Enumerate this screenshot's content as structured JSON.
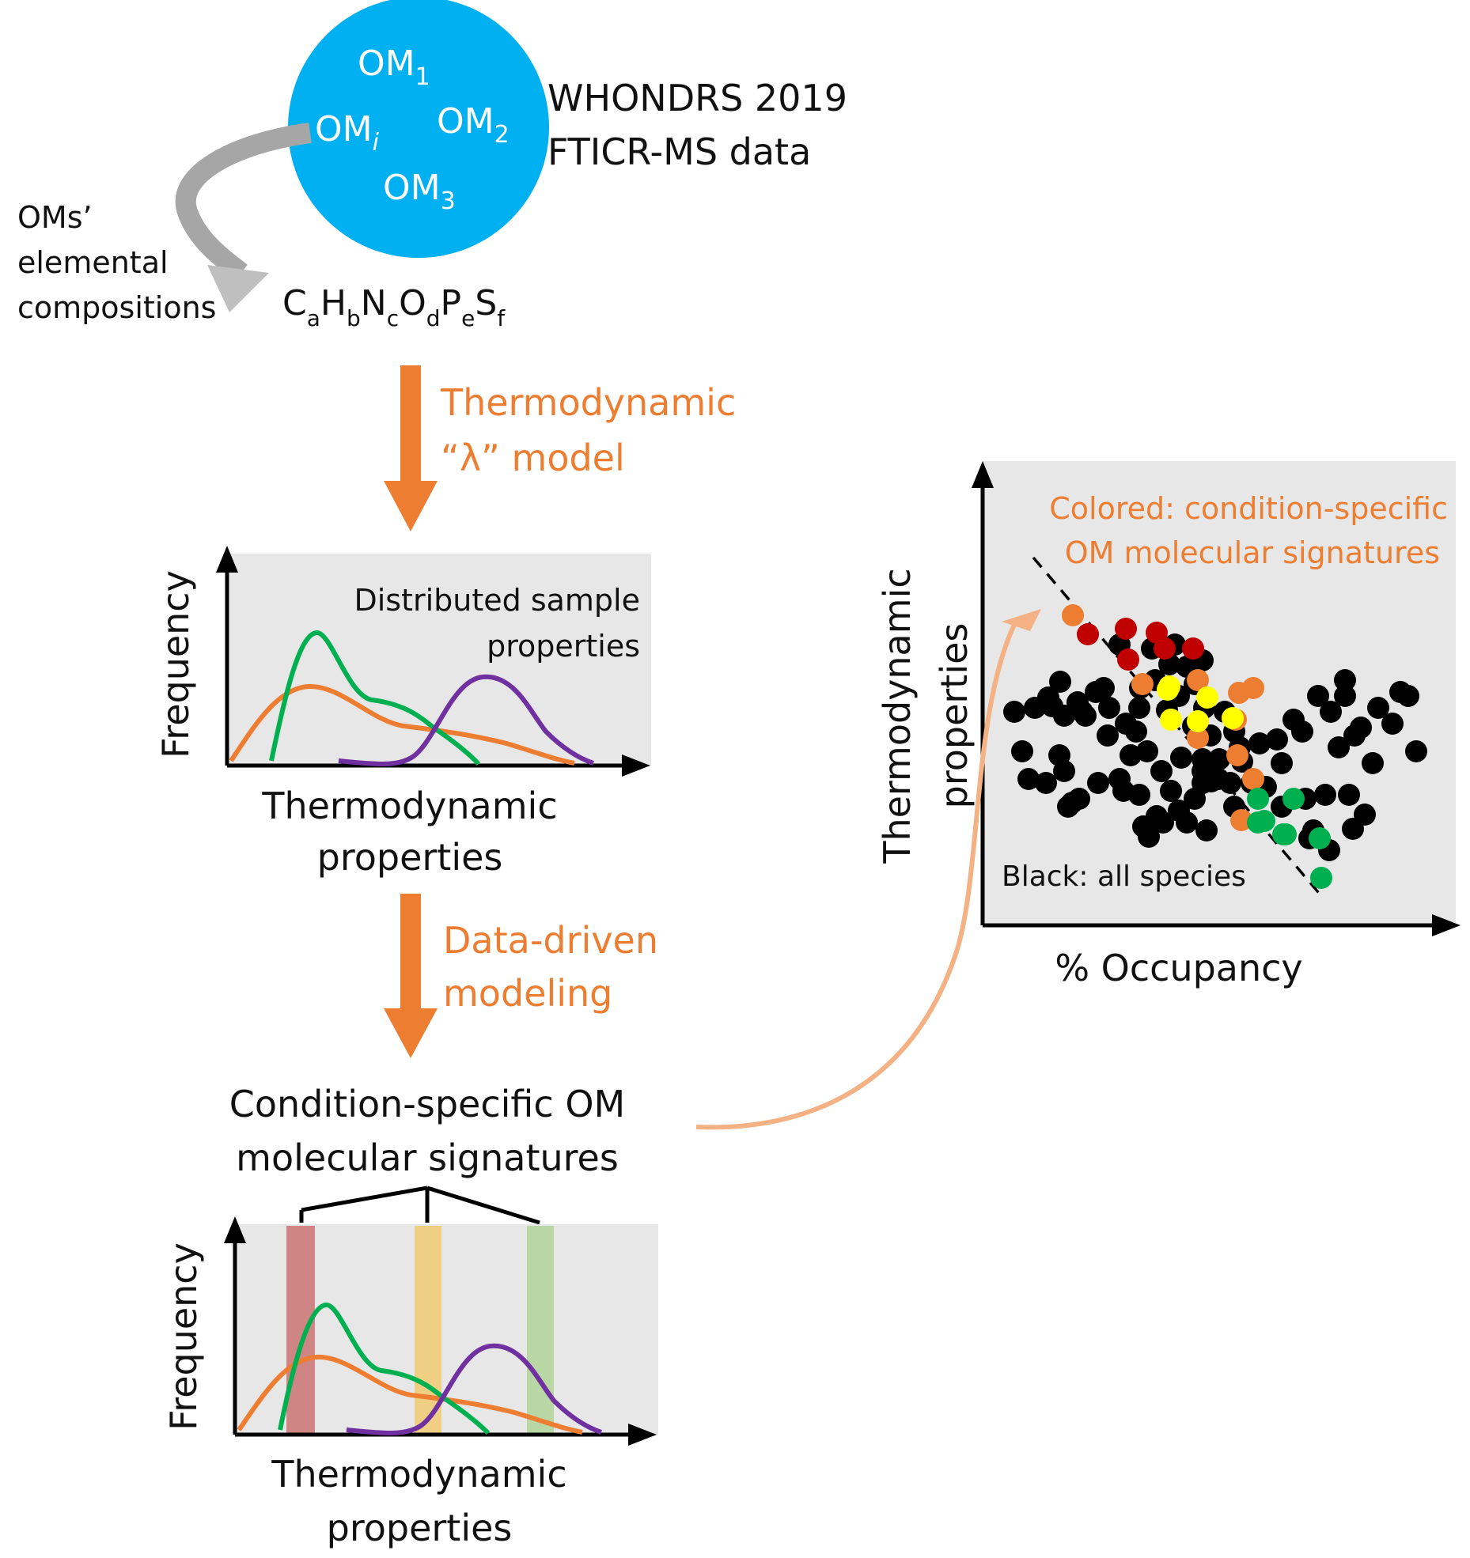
{
  "header": {
    "circle_labels": [
      "OM",
      "OM",
      "OM",
      "OM"
    ],
    "circle_subscripts": [
      "1",
      "2",
      "i",
      "3"
    ],
    "dataset_line1": "WHONDRS 2019",
    "dataset_line2": "FTICR-MS data",
    "side_label_line1": "OMs’",
    "side_label_line2": "elemental",
    "side_label_line3": "compositions",
    "formula_parts": [
      "C",
      "a",
      "H",
      "b",
      "N",
      "c",
      "O",
      "d",
      "P",
      "e",
      "S",
      "f"
    ]
  },
  "steps": [
    {
      "line1": "Thermodynamic",
      "line2": "“λ” model"
    },
    {
      "line1": "Data-driven",
      "line2": "modeling"
    }
  ],
  "plot1": {
    "ylabel": "Frequency",
    "xlabel_line1": "Thermodynamic",
    "xlabel_line2": "properties",
    "annotation_line1": "Distributed sample",
    "annotation_line2": "properties"
  },
  "signatures": {
    "line1": "Condition-specific OM",
    "line2": "molecular signatures"
  },
  "plot2": {
    "ylabel": "Frequency",
    "xlabel_line1": "Thermodynamic",
    "xlabel_line2": "properties"
  },
  "scatter": {
    "ylabel_line1": "Thermodynamic",
    "ylabel_line2": "properties",
    "xlabel": "% Occupancy",
    "legend_colored_line1": "Colored: condition-specific",
    "legend_colored_line2": "OM molecular signatures",
    "legend_black": "Black: all species"
  },
  "colors": {
    "circle": "#00B0F0",
    "accent_orange": "#ED7D31",
    "curve_green": "#00B050",
    "curve_purple": "#7030A0",
    "dot_red": "#C00000",
    "dot_yellow": "#FFFF00",
    "band_red": "#C0504D",
    "band_yellow": "#F2C14E",
    "band_green": "#A9D18E",
    "panel_gray": "#E7E7E7"
  }
}
